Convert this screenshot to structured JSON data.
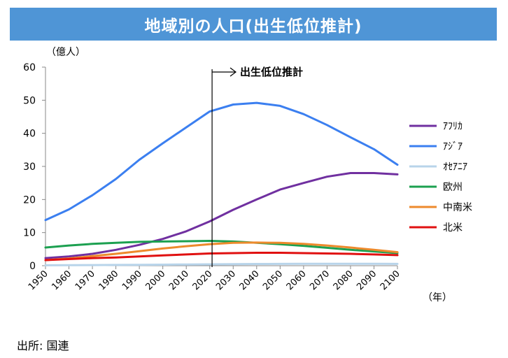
{
  "title": "地域別の人口(出生低位推計)",
  "source": "出所: 国連",
  "chart_data": {
    "type": "line",
    "title": "地域別の人口(出生低位推計)",
    "ylabel": "（億人）",
    "xlabel": "（年）",
    "ylim": [
      0,
      60
    ],
    "yticks": [
      0,
      10,
      20,
      30,
      40,
      50,
      60
    ],
    "xlim": [
      1950,
      2100
    ],
    "xticks": [
      1950,
      1960,
      1970,
      1980,
      1990,
      2000,
      2010,
      2020,
      2030,
      2040,
      2050,
      2060,
      2070,
      2080,
      2090,
      2100
    ],
    "grid": false,
    "legend_position": "right",
    "annotation": {
      "label": "出生低位推計",
      "year": 2021
    },
    "x": [
      1950,
      1960,
      1970,
      1980,
      1990,
      2000,
      2010,
      2020,
      2030,
      2040,
      2050,
      2060,
      2070,
      2080,
      2090,
      2100
    ],
    "series": [
      {
        "name": "ｱﾌﾘｶ",
        "color": "#7030a0",
        "values": [
          2.3,
          2.8,
          3.6,
          4.8,
          6.3,
          8.1,
          10.4,
          13.4,
          16.9,
          20.0,
          23.0,
          25.0,
          26.9,
          28.0,
          28.0,
          27.6
        ]
      },
      {
        "name": "ｱｼﾞｱ",
        "color": "#3b7ff0",
        "values": [
          13.8,
          17.0,
          21.3,
          26.2,
          32.0,
          37.0,
          41.8,
          46.6,
          48.7,
          49.2,
          48.3,
          45.8,
          42.5,
          38.8,
          35.2,
          30.5
        ]
      },
      {
        "name": "ｵｾｱﾆｱ",
        "color": "#b8d4ea",
        "values": [
          0.13,
          0.16,
          0.2,
          0.23,
          0.27,
          0.31,
          0.37,
          0.43,
          0.48,
          0.52,
          0.55,
          0.56,
          0.57,
          0.57,
          0.56,
          0.55
        ]
      },
      {
        "name": "欧州",
        "color": "#1ca050",
        "values": [
          5.5,
          6.1,
          6.6,
          6.9,
          7.2,
          7.3,
          7.4,
          7.5,
          7.3,
          6.9,
          6.5,
          6.0,
          5.4,
          4.8,
          4.3,
          3.8
        ]
      },
      {
        "name": "中南米",
        "color": "#ed8a2c",
        "values": [
          1.7,
          2.2,
          2.9,
          3.6,
          4.4,
          5.2,
          5.9,
          6.5,
          6.9,
          7.0,
          6.9,
          6.6,
          6.1,
          5.5,
          4.8,
          4.1
        ]
      },
      {
        "name": "北米",
        "color": "#e01010",
        "values": [
          1.7,
          2.0,
          2.3,
          2.5,
          2.8,
          3.1,
          3.4,
          3.7,
          3.8,
          3.9,
          3.9,
          3.8,
          3.7,
          3.6,
          3.4,
          3.2
        ]
      }
    ]
  }
}
